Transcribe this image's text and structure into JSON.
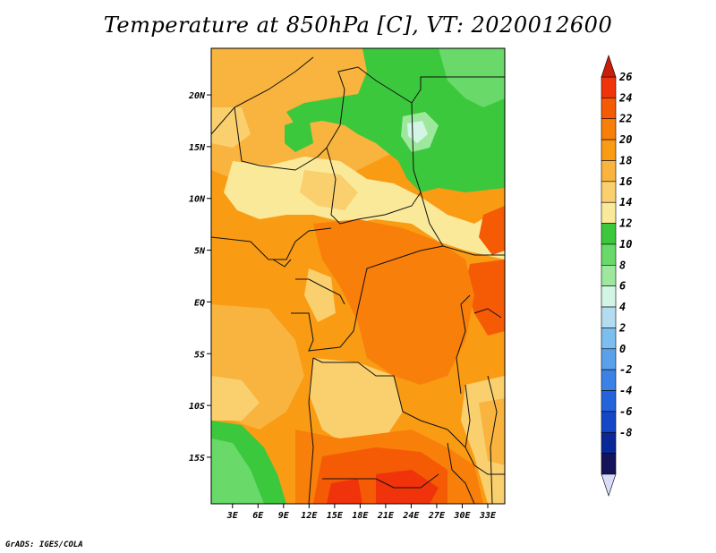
{
  "title": "Temperature at 850hPa [C], VT: 2020012600",
  "credit": "GrADS: IGES/COLA",
  "map": {
    "lat_labels": [
      "20N",
      "15N",
      "10N",
      "5N",
      "EQ",
      "5S",
      "10S",
      "15S"
    ],
    "lon_labels": [
      "3E",
      "6E",
      "9E",
      "12E",
      "15E",
      "18E",
      "21E",
      "24E",
      "27E",
      "30E",
      "33E"
    ],
    "lon_range": [
      0.5,
      35
    ],
    "lat_range": [
      -19.5,
      24.5
    ]
  },
  "colorbar": {
    "levels": [
      "26",
      "24",
      "22",
      "20",
      "18",
      "16",
      "14",
      "12",
      "10",
      "8",
      "6",
      "4",
      "2",
      "0",
      "-2",
      "-4",
      "-6",
      "-8"
    ],
    "colors": [
      "#f0330a",
      "#f55a05",
      "#f87f0a",
      "#fa9b14",
      "#f8b43e",
      "#fad06e",
      "#fbe99a",
      "#3cc83c",
      "#69d969",
      "#9ee89e",
      "#d2f5e6",
      "#b4dcf0",
      "#7dbef0",
      "#5aa0eb",
      "#3c82e6",
      "#2364dc",
      "#1446c8",
      "#0a2896",
      "#14145a"
    ],
    "top_arrow_color": "#c81e0a",
    "bottom_arrow_color": "#d8dcf8"
  }
}
